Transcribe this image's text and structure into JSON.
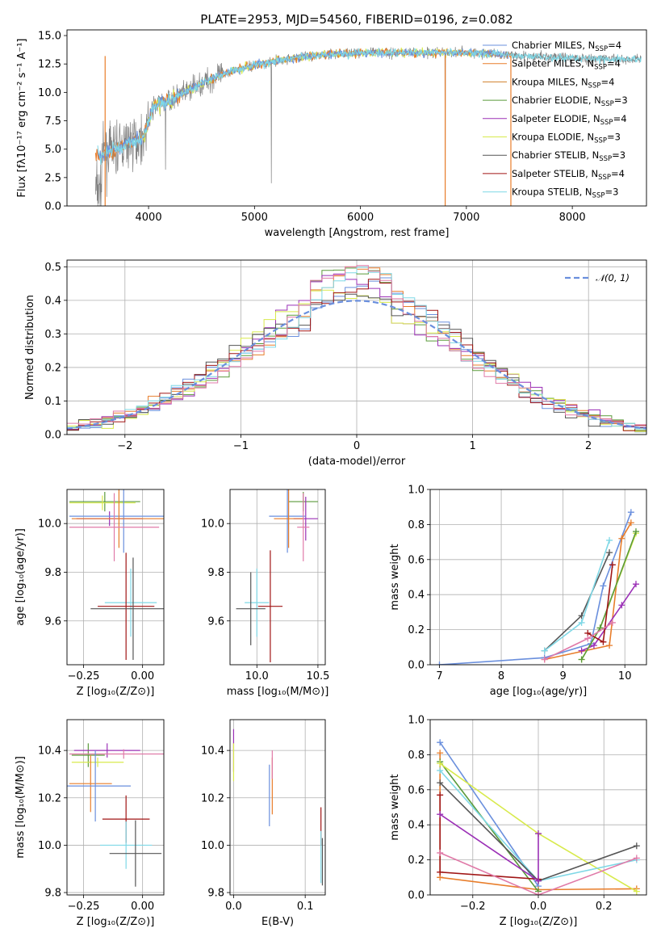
{
  "colors": {
    "Chabrier MILES": "#6a8fdd",
    "Salpeter MILES": "#e87d2a",
    "Kroupa MILES": "#d07f2a",
    "Chabrier ELODIE": "#5a9a3a",
    "Salpeter ELODIE": "#9b30b6",
    "Kroupa ELODIE": "#d8ea4c",
    "Chabrier STELIB": "#555555",
    "Salpeter STELIB": "#a01515",
    "Kroupa STELIB": "#7fd8e6",
    "pink": "#e07aa8",
    "grey": "#808080",
    "grid": "#b0b0b0"
  },
  "chart_data": [
    {
      "id": "spectrum",
      "type": "line",
      "title": "PLATE=2953, MJD=54560, FIBERID=0196, z=0.082",
      "xlabel": "wavelength [Angstrom, rest frame]",
      "ylabel": "Flux [fλ10⁻¹⁷ erg cm⁻² s⁻¹ A⁻¹]",
      "xlim": [
        3230,
        8700
      ],
      "ylim": [
        0,
        15.5
      ],
      "xticks": [
        "4000",
        "5000",
        "6000",
        "7000",
        "8000"
      ],
      "yticks": [
        "0.0",
        "2.5",
        "5.0",
        "7.5",
        "10.0",
        "12.5",
        "15.0"
      ],
      "legend_position": "right",
      "legend": [
        {
          "name": "Chabrier MILES, N",
          "sub": "SSP",
          "tail": "=4"
        },
        {
          "name": "Salpeter MILES, N",
          "sub": "SSP",
          "tail": "=4"
        },
        {
          "name": "Kroupa MILES, N",
          "sub": "SSP",
          "tail": "=4"
        },
        {
          "name": "Chabrier ELODIE, N",
          "sub": "SSP",
          "tail": "=3"
        },
        {
          "name": "Salpeter ELODIE, N",
          "sub": "SSP",
          "tail": "=4"
        },
        {
          "name": "Kroupa ELODIE, N",
          "sub": "SSP",
          "tail": "=3"
        },
        {
          "name": "Chabrier STELIB, N",
          "sub": "SSP",
          "tail": "=3"
        },
        {
          "name": "Salpeter STELIB, N",
          "sub": "SSP",
          "tail": "=4"
        },
        {
          "name": "Kroupa STELIB, N",
          "sub": "SSP",
          "tail": "=3"
        }
      ],
      "continuum_trend": [
        [
          3550,
          4.5
        ],
        [
          3800,
          5.5
        ],
        [
          3950,
          6.0
        ],
        [
          4050,
          8.8
        ],
        [
          4250,
          9.5
        ],
        [
          4500,
          10.8
        ],
        [
          4750,
          11.8
        ],
        [
          5000,
          12.4
        ],
        [
          5500,
          13.2
        ],
        [
          6000,
          13.5
        ],
        [
          6500,
          13.5
        ],
        [
          7000,
          13.5
        ],
        [
          7400,
          13.3
        ],
        [
          8000,
          13.0
        ],
        [
          8650,
          12.9
        ]
      ]
    },
    {
      "id": "residuals",
      "type": "line",
      "xlabel": "(data-model)/error",
      "ylabel": "Normed distribution",
      "xlim": [
        -2.5,
        2.5
      ],
      "ylim": [
        0,
        0.52
      ],
      "xticks": [
        "−2",
        "−1",
        "0",
        "1",
        "2"
      ],
      "yticks": [
        "0.0",
        "0.1",
        "0.2",
        "0.3",
        "0.4",
        "0.5"
      ],
      "legend_position": "top-right",
      "legend": "𝒩(0, 1)",
      "series": [
        {
          "name": "𝒩(0, 1)",
          "kind": "gaussian",
          "mu": 0,
          "sigma": 1
        }
      ]
    },
    {
      "id": "age_vs_Z",
      "type": "scatter",
      "xlabel": "Z [log₁₀(Z/Z⊙)]",
      "ylabel": "age  [log₁₀(age/yr)]",
      "xlim": [
        -0.32,
        0.09
      ],
      "ylim": [
        9.42,
        10.14
      ],
      "xticks": [
        "−0.25",
        "0.00"
      ],
      "yticks": [
        "9.6",
        "9.8",
        "10.0"
      ],
      "points": [
        {
          "c": "Chabrier ELODIE",
          "x": -0.16,
          "xerr": 0.15,
          "y": 10.09,
          "yerr": 0.04
        },
        {
          "c": "Kroupa ELODIE",
          "x": -0.17,
          "xerr": 0.14,
          "y": 10.085,
          "yerr": 0.03
        },
        {
          "c": "Salpeter ELODIE",
          "x": -0.14,
          "xerr": 0.14,
          "y": 10.02,
          "yerr": 0.03
        },
        {
          "c": "Chabrier MILES",
          "x": -0.08,
          "xerr": 0.23,
          "y": 10.03,
          "yerr": 0.15
        },
        {
          "c": "Salpeter MILES",
          "x": -0.1,
          "xerr": 0.2,
          "y": 10.02,
          "yerr": 0.12
        },
        {
          "c": "pink",
          "x": -0.12,
          "xerr": 0.19,
          "y": 9.985,
          "yerr": 0.14
        },
        {
          "c": "Kroupa STELIB",
          "x": -0.05,
          "xerr": 0.11,
          "y": 9.675,
          "yerr": 0.14
        },
        {
          "c": "Salpeter STELIB",
          "x": -0.07,
          "xerr": 0.12,
          "y": 9.66,
          "yerr": 0.22
        },
        {
          "c": "Chabrier STELIB",
          "x": -0.04,
          "xerr": 0.18,
          "y": 9.65,
          "yerr": 0.21
        }
      ]
    },
    {
      "id": "age_vs_mass",
      "type": "scatter",
      "xlabel": "mass [log₁₀(M/M⊙)]",
      "xlim": [
        9.78,
        10.56
      ],
      "ylim": [
        9.42,
        10.14
      ],
      "xticks": [
        "10.0",
        "10.5"
      ],
      "yticks": [
        "9.6",
        "9.8",
        "10.0"
      ],
      "points": [
        {
          "c": "Chabrier ELODIE",
          "x": 10.38,
          "xerr": 0.12,
          "y": 10.09,
          "yerr": 0.04
        },
        {
          "c": "Salpeter ELODIE",
          "x": 10.4,
          "xerr": 0.1,
          "y": 10.02,
          "yerr": 0.09
        },
        {
          "c": "Chabrier MILES",
          "x": 10.25,
          "xerr": 0.15,
          "y": 10.03,
          "yerr": 0.15
        },
        {
          "c": "Salpeter MILES",
          "x": 10.26,
          "xerr": 0.12,
          "y": 10.02,
          "yerr": 0.12
        },
        {
          "c": "pink",
          "x": 10.38,
          "xerr": 0.05,
          "y": 9.985,
          "yerr": 0.14
        },
        {
          "c": "Kroupa STELIB",
          "x": 10.0,
          "xerr": 0.1,
          "y": 9.675,
          "yerr": 0.14
        },
        {
          "c": "Chabrier STELIB",
          "x": 9.95,
          "xerr": 0.12,
          "y": 9.65,
          "yerr": 0.15
        },
        {
          "c": "Salpeter STELIB",
          "x": 10.11,
          "xerr": 0.1,
          "y": 9.66,
          "yerr": 0.23
        }
      ]
    },
    {
      "id": "massweight_vs_age",
      "type": "line",
      "xlabel": "age  [log₁₀(age/yr)]",
      "ylabel": "mass weight",
      "xlim": [
        6.85,
        10.35
      ],
      "ylim": [
        0,
        1
      ],
      "xticks": [
        "7",
        "8",
        "9",
        "10"
      ],
      "yticks": [
        "0.0",
        "0.2",
        "0.4",
        "0.6",
        "0.8",
        "1.0"
      ],
      "series": [
        {
          "c": "Chabrier MILES",
          "x": [
            7.0,
            8.7,
            9.45,
            9.65,
            10.1
          ],
          "y": [
            0.0,
            0.04,
            0.12,
            0.45,
            0.87
          ]
        },
        {
          "c": "Salpeter MILES",
          "x": [
            8.7,
            9.75,
            9.95,
            10.1
          ],
          "y": [
            0.03,
            0.11,
            0.72,
            0.81
          ]
        },
        {
          "c": "Salpeter ELODIE",
          "x": [
            9.3,
            9.5,
            9.95,
            10.18
          ],
          "y": [
            0.08,
            0.11,
            0.34,
            0.46
          ]
        },
        {
          "c": "Kroupa ELODIE",
          "x": [
            9.3,
            9.6,
            10.18
          ],
          "y": [
            0.03,
            0.21,
            0.75
          ]
        },
        {
          "c": "Chabrier ELODIE",
          "x": [
            9.3,
            9.6,
            10.18
          ],
          "y": [
            0.03,
            0.21,
            0.76
          ]
        },
        {
          "c": "Chabrier STELIB",
          "x": [
            8.7,
            9.3,
            9.75
          ],
          "y": [
            0.08,
            0.28,
            0.64
          ]
        },
        {
          "c": "Salpeter STELIB",
          "x": [
            9.4,
            9.65,
            9.8
          ],
          "y": [
            0.18,
            0.13,
            0.57
          ]
        },
        {
          "c": "Kroupa STELIB",
          "x": [
            8.7,
            9.3,
            9.75
          ],
          "y": [
            0.08,
            0.24,
            0.71
          ]
        },
        {
          "c": "pink",
          "x": [
            8.7,
            9.4,
            9.8
          ],
          "y": [
            0.03,
            0.15,
            0.24
          ]
        }
      ]
    },
    {
      "id": "mass_vs_Z",
      "type": "scatter",
      "xlabel": "Z [log₁₀(Z/Z⊙)]",
      "ylabel": "mass [log₁₀(M/M⊙)]",
      "xlim": [
        -0.32,
        0.09
      ],
      "ylim": [
        9.79,
        10.53
      ],
      "xticks": [
        "−0.25",
        "0.00"
      ],
      "yticks": [
        "9.8",
        "10.0",
        "10.2",
        "10.4"
      ],
      "points": [
        {
          "c": "Chabrier ELODIE",
          "x": -0.23,
          "xerr": 0.07,
          "y": 10.38,
          "yerr": 0.05
        },
        {
          "c": "Salpeter ELODIE",
          "x": -0.15,
          "xerr": 0.14,
          "y": 10.4,
          "yerr": 0.03
        },
        {
          "c": "Kroupa ELODIE",
          "x": -0.19,
          "xerr": 0.11,
          "y": 10.35,
          "yerr": 0.02
        },
        {
          "c": "pink",
          "x": -0.08,
          "xerr": 0.23,
          "y": 10.385,
          "yerr": 0.02
        },
        {
          "c": "Salpeter MILES",
          "x": -0.22,
          "xerr": 0.09,
          "y": 10.26,
          "yerr": 0.12
        },
        {
          "c": "Chabrier MILES",
          "x": -0.2,
          "xerr": 0.15,
          "y": 10.25,
          "yerr": 0.15
        },
        {
          "c": "Salpeter STELIB",
          "x": -0.07,
          "xerr": 0.1,
          "y": 10.11,
          "yerr": 0.1
        },
        {
          "c": "Kroupa STELIB",
          "x": -0.07,
          "xerr": 0.11,
          "y": 10.0,
          "yerr": 0.1
        },
        {
          "c": "Chabrier STELIB",
          "x": -0.03,
          "xerr": 0.11,
          "y": 9.965,
          "yerr": 0.14
        }
      ]
    },
    {
      "id": "mass_vs_EBV",
      "type": "scatter",
      "xlabel": "E(B-V)",
      "xlim": [
        -0.005,
        0.128
      ],
      "ylim": [
        9.79,
        10.53
      ],
      "xticks": [
        "0.0",
        "0.1"
      ],
      "yticks": [
        "9.8",
        "10.0",
        "10.2",
        "10.4"
      ],
      "points": [
        {
          "c": "Salpeter ELODIE",
          "x": 0.0,
          "xerr": 0.0,
          "y": 10.4,
          "yerr": 0.09
        },
        {
          "c": "Kroupa ELODIE",
          "x": 0.0,
          "xerr": 0.0,
          "y": 10.35,
          "yerr": 0.08
        },
        {
          "c": "Chabrier MILES",
          "x": 0.05,
          "xerr": 0.0,
          "y": 10.21,
          "yerr": 0.13
        },
        {
          "c": "Salpeter MILES",
          "x": 0.054,
          "xerr": 0.0,
          "y": 10.25,
          "yerr": 0.12
        },
        {
          "c": "pink",
          "x": 0.054,
          "xerr": 0.0,
          "y": 10.34,
          "yerr": 0.06
        },
        {
          "c": "Salpeter STELIB",
          "x": 0.122,
          "xerr": 0.0,
          "y": 10.08,
          "yerr": 0.08
        },
        {
          "c": "Kroupa STELIB",
          "x": 0.122,
          "xerr": 0.0,
          "y": 9.95,
          "yerr": 0.11
        },
        {
          "c": "Chabrier STELIB",
          "x": 0.124,
          "xerr": 0.0,
          "y": 9.93,
          "yerr": 0.1
        }
      ]
    },
    {
      "id": "massweight_vs_Z",
      "type": "line",
      "xlabel": "Z [log₁₀(Z/Z⊙)]",
      "ylabel": "mass weight",
      "xlim": [
        -0.33,
        0.33
      ],
      "ylim": [
        0,
        1
      ],
      "xticks": [
        "−0.2",
        "0.0",
        "0.2"
      ],
      "yticks": [
        "0.0",
        "0.2",
        "0.4",
        "0.6",
        "0.8",
        "1.0"
      ],
      "series": [
        {
          "c": "Chabrier MILES",
          "x": [
            -0.3,
            0.0
          ],
          "y": [
            0.87,
            0.05
          ]
        },
        {
          "c": "Salpeter MILES",
          "x": [
            -0.3,
            -0.3,
            0.0,
            0.3
          ],
          "y": [
            0.81,
            0.1,
            0.03,
            0.035
          ]
        },
        {
          "c": "Chabrier ELODIE",
          "x": [
            -0.3,
            0.0
          ],
          "y": [
            0.76,
            0.02
          ]
        },
        {
          "c": "Kroupa ELODIE",
          "x": [
            -0.3,
            0.0,
            0.3
          ],
          "y": [
            0.75,
            0.35,
            0.02
          ]
        },
        {
          "c": "Kroupa STELIB",
          "x": [
            -0.3,
            0.0,
            0.3
          ],
          "y": [
            0.71,
            0.08,
            0.2
          ]
        },
        {
          "c": "Chabrier STELIB",
          "x": [
            -0.3,
            0.0,
            0.3
          ],
          "y": [
            0.64,
            0.08,
            0.28
          ]
        },
        {
          "c": "Salpeter STELIB",
          "x": [
            -0.3,
            -0.3,
            0.0
          ],
          "y": [
            0.57,
            0.13,
            0.09
          ]
        },
        {
          "c": "Salpeter ELODIE",
          "x": [
            -0.3,
            0.0,
            0.0
          ],
          "y": [
            0.46,
            0.08,
            0.35
          ]
        },
        {
          "c": "pink",
          "x": [
            -0.3,
            0.0,
            0.3
          ],
          "y": [
            0.24,
            0.0,
            0.21
          ]
        }
      ]
    }
  ]
}
